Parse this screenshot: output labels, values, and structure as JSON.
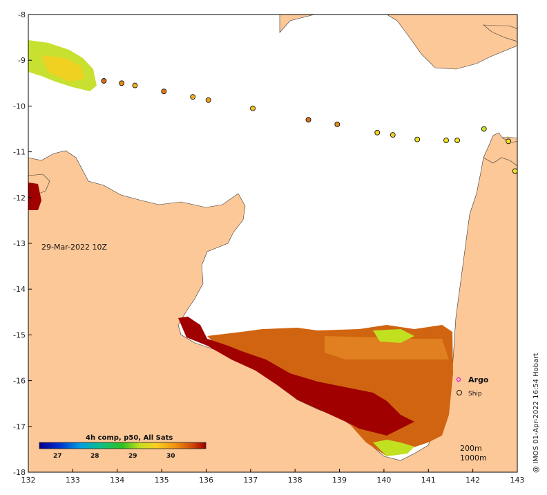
{
  "map": {
    "timestamp_label": "29-Mar-2022 10Z",
    "x_ticks": [
      "132",
      "133",
      "134",
      "135",
      "136",
      "137",
      "138",
      "139",
      "140",
      "141",
      "142",
      "143"
    ],
    "y_ticks": [
      "-8",
      "-9",
      "-10",
      "-11",
      "-12",
      "-13",
      "-14",
      "-15",
      "-16",
      "-17",
      "-18"
    ],
    "lon_range": [
      132,
      143
    ],
    "lat_range": [
      -18,
      -8
    ],
    "colors": {
      "land": "#fdc898",
      "sea_no_data": "#ffffff",
      "sst_high": "#a00000",
      "sst_mid": "#d06010"
    }
  },
  "legend": {
    "argo_label": "Argo",
    "ship_label": "Ship",
    "depth_label_1": "200m",
    "depth_label_2": "1000m"
  },
  "colorbar": {
    "title": "4h comp, p50, All Sats",
    "ticks": [
      "27",
      "28",
      "29",
      "30"
    ]
  },
  "credit": "@ IMOS 01-Apr-2022 16:54 Hobart",
  "ship_observations": [
    {
      "lon": 133.7,
      "lat": -9.45,
      "color": "#d8701a"
    },
    {
      "lon": 134.1,
      "lat": -9.5,
      "color": "#e0901a"
    },
    {
      "lon": 134.4,
      "lat": -9.55,
      "color": "#f0b020"
    },
    {
      "lon": 135.05,
      "lat": -9.68,
      "color": "#e07a1a"
    },
    {
      "lon": 135.7,
      "lat": -9.8,
      "color": "#f0b020"
    },
    {
      "lon": 136.05,
      "lat": -9.87,
      "color": "#f0a020"
    },
    {
      "lon": 137.05,
      "lat": -10.05,
      "color": "#f4c020"
    },
    {
      "lon": 138.3,
      "lat": -10.3,
      "color": "#d8701a"
    },
    {
      "lon": 138.95,
      "lat": -10.4,
      "color": "#e0901a"
    },
    {
      "lon": 139.85,
      "lat": -10.58,
      "color": "#f4d020"
    },
    {
      "lon": 140.2,
      "lat": -10.63,
      "color": "#f4d020"
    },
    {
      "lon": 140.75,
      "lat": -10.73,
      "color": "#f0e020"
    },
    {
      "lon": 141.4,
      "lat": -10.75,
      "color": "#f0e020"
    },
    {
      "lon": 141.65,
      "lat": -10.75,
      "color": "#f0e020"
    },
    {
      "lon": 142.25,
      "lat": -10.5,
      "color": "#c8e030"
    },
    {
      "lon": 142.8,
      "lat": -10.77,
      "color": "#f0e020"
    },
    {
      "lon": 142.95,
      "lat": -11.42,
      "color": "#f0e020"
    }
  ]
}
